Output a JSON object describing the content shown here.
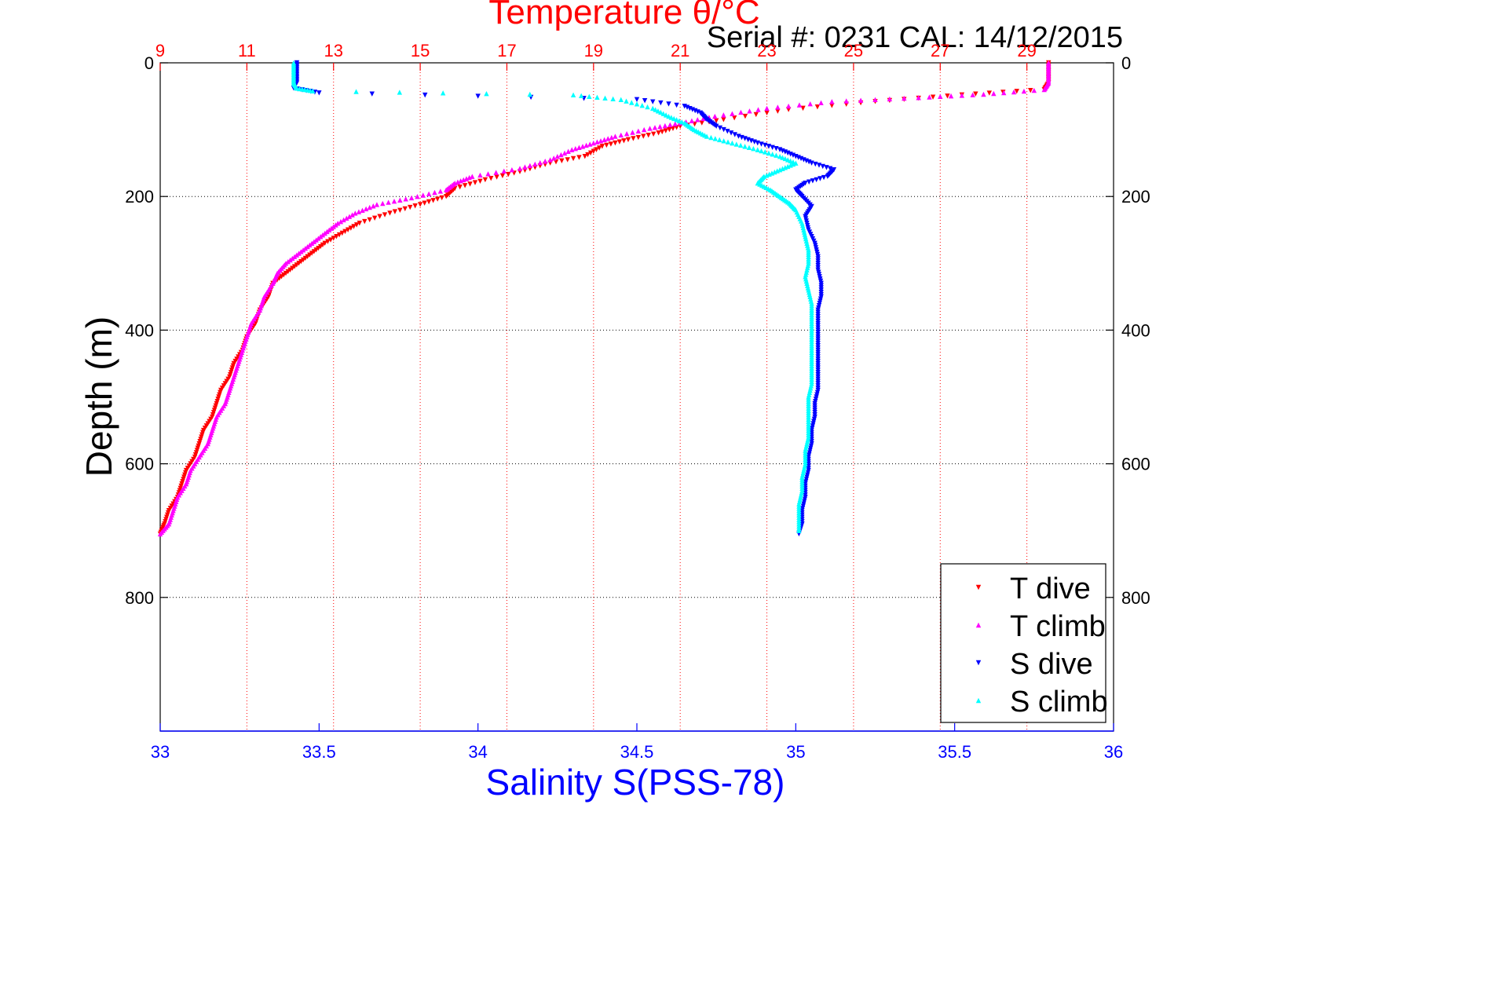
{
  "chart_data": {
    "type": "scatter",
    "title": "Temperature θ/°C",
    "subtitle": "Serial #: 0231  CAL: 14/12/2015",
    "ylabel": "Depth (m)",
    "xlabel": "Salinity S(PSS-78)",
    "x_top": {
      "label": "Temperature θ/°C",
      "lim": [
        9,
        31
      ],
      "ticks": [
        "9",
        "11",
        "13",
        "15",
        "17",
        "19",
        "21",
        "23",
        "25",
        "27",
        "29"
      ],
      "tick_values": [
        9,
        11,
        13,
        15,
        17,
        19,
        21,
        23,
        25,
        27,
        29
      ],
      "color": "#ff0000"
    },
    "x_bottom": {
      "label": "Salinity S(PSS-78)",
      "lim": [
        33,
        36
      ],
      "ticks": [
        "33",
        "33.5",
        "34",
        "34.5",
        "35",
        "35.5",
        "36"
      ],
      "tick_values": [
        33,
        33.5,
        34,
        34.5,
        35,
        35.5,
        36
      ],
      "color": "#0000ff"
    },
    "y": {
      "label": "Depth (m)",
      "lim": [
        0,
        1000
      ],
      "reversed": true,
      "ticks": [
        "0",
        "200",
        "400",
        "600",
        "800"
      ],
      "tick_values": [
        0,
        200,
        400,
        600,
        800
      ]
    },
    "grid": true,
    "legend_position": "bottom-right",
    "series": [
      {
        "name": "T dive",
        "axis": "temperature",
        "color": "#ff0000",
        "marker": "triangle-down",
        "points": [
          [
            29.5,
            0
          ],
          [
            29.5,
            15
          ],
          [
            29.5,
            30
          ],
          [
            29.4,
            40
          ],
          [
            27.5,
            48
          ],
          [
            25.5,
            58
          ],
          [
            23.5,
            70
          ],
          [
            22.0,
            85
          ],
          [
            21.0,
            95
          ],
          [
            20.5,
            105
          ],
          [
            19.8,
            115
          ],
          [
            19.2,
            125
          ],
          [
            18.8,
            140
          ],
          [
            18.0,
            150
          ],
          [
            17.3,
            163
          ],
          [
            16.5,
            175
          ],
          [
            15.8,
            188
          ],
          [
            15.6,
            200
          ],
          [
            15.0,
            212
          ],
          [
            14.3,
            225
          ],
          [
            13.6,
            240
          ],
          [
            13.2,
            255
          ],
          [
            12.8,
            270
          ],
          [
            12.5,
            285
          ],
          [
            12.2,
            300
          ],
          [
            11.9,
            315
          ],
          [
            11.6,
            330
          ],
          [
            11.5,
            350
          ],
          [
            11.3,
            370
          ],
          [
            11.2,
            390
          ],
          [
            11.0,
            410
          ],
          [
            10.9,
            430
          ],
          [
            10.7,
            450
          ],
          [
            10.6,
            470
          ],
          [
            10.4,
            490
          ],
          [
            10.3,
            510
          ],
          [
            10.2,
            530
          ],
          [
            10.0,
            550
          ],
          [
            9.9,
            570
          ],
          [
            9.8,
            590
          ],
          [
            9.6,
            610
          ],
          [
            9.5,
            630
          ],
          [
            9.4,
            650
          ],
          [
            9.2,
            670
          ],
          [
            9.1,
            690
          ],
          [
            9.0,
            705
          ]
        ]
      },
      {
        "name": "T climb",
        "axis": "temperature",
        "color": "#ff00ff",
        "marker": "triangle-up",
        "points": [
          [
            29.5,
            0
          ],
          [
            29.5,
            15
          ],
          [
            29.5,
            30
          ],
          [
            29.4,
            40
          ],
          [
            28.0,
            47
          ],
          [
            26.5,
            52
          ],
          [
            24.5,
            58
          ],
          [
            23.0,
            68
          ],
          [
            21.8,
            80
          ],
          [
            21.0,
            90
          ],
          [
            20.3,
            98
          ],
          [
            19.5,
            110
          ],
          [
            19.0,
            120
          ],
          [
            18.5,
            130
          ],
          [
            18.0,
            145
          ],
          [
            17.3,
            158
          ],
          [
            16.2,
            170
          ],
          [
            15.8,
            180
          ],
          [
            15.6,
            190
          ],
          [
            14.8,
            202
          ],
          [
            14.0,
            212
          ],
          [
            13.5,
            225
          ],
          [
            13.1,
            240
          ],
          [
            12.8,
            255
          ],
          [
            12.5,
            270
          ],
          [
            12.2,
            285
          ],
          [
            11.9,
            300
          ],
          [
            11.7,
            315
          ],
          [
            11.6,
            330
          ],
          [
            11.4,
            350
          ],
          [
            11.3,
            370
          ],
          [
            11.1,
            390
          ],
          [
            11.0,
            410
          ],
          [
            10.9,
            430
          ],
          [
            10.8,
            450
          ],
          [
            10.7,
            470
          ],
          [
            10.6,
            490
          ],
          [
            10.5,
            510
          ],
          [
            10.3,
            530
          ],
          [
            10.2,
            550
          ],
          [
            10.1,
            570
          ],
          [
            9.9,
            590
          ],
          [
            9.7,
            610
          ],
          [
            9.6,
            630
          ],
          [
            9.4,
            650
          ],
          [
            9.3,
            670
          ],
          [
            9.2,
            690
          ],
          [
            9.0,
            705
          ]
        ]
      },
      {
        "name": "S dive",
        "axis": "salinity",
        "color": "#0000ff",
        "marker": "triangle-down",
        "points": [
          [
            33.43,
            0
          ],
          [
            33.43,
            15
          ],
          [
            33.43,
            30
          ],
          [
            33.42,
            38
          ],
          [
            33.5,
            45
          ],
          [
            34.5,
            55
          ],
          [
            34.65,
            65
          ],
          [
            34.7,
            75
          ],
          [
            34.72,
            85
          ],
          [
            34.75,
            95
          ],
          [
            34.82,
            110
          ],
          [
            34.88,
            120
          ],
          [
            34.95,
            130
          ],
          [
            35.0,
            140
          ],
          [
            35.05,
            150
          ],
          [
            35.12,
            160
          ],
          [
            35.1,
            170
          ],
          [
            35.03,
            180
          ],
          [
            35.0,
            190
          ],
          [
            35.02,
            200
          ],
          [
            35.05,
            215
          ],
          [
            35.03,
            230
          ],
          [
            35.04,
            250
          ],
          [
            35.06,
            270
          ],
          [
            35.07,
            290
          ],
          [
            35.07,
            310
          ],
          [
            35.08,
            330
          ],
          [
            35.08,
            350
          ],
          [
            35.07,
            370
          ],
          [
            35.07,
            390
          ],
          [
            35.07,
            410
          ],
          [
            35.07,
            430
          ],
          [
            35.07,
            450
          ],
          [
            35.07,
            470
          ],
          [
            35.07,
            490
          ],
          [
            35.06,
            510
          ],
          [
            35.06,
            530
          ],
          [
            35.05,
            550
          ],
          [
            35.05,
            570
          ],
          [
            35.04,
            590
          ],
          [
            35.04,
            610
          ],
          [
            35.03,
            630
          ],
          [
            35.03,
            650
          ],
          [
            35.02,
            670
          ],
          [
            35.02,
            690
          ],
          [
            35.01,
            705
          ]
        ]
      },
      {
        "name": "S climb",
        "axis": "salinity",
        "color": "#00ffff",
        "marker": "triangle-up",
        "points": [
          [
            33.42,
            0
          ],
          [
            33.42,
            15
          ],
          [
            33.42,
            30
          ],
          [
            33.43,
            38
          ],
          [
            33.48,
            42
          ],
          [
            34.3,
            48
          ],
          [
            34.45,
            55
          ],
          [
            34.55,
            68
          ],
          [
            34.6,
            80
          ],
          [
            34.65,
            90
          ],
          [
            34.68,
            100
          ],
          [
            34.72,
            110
          ],
          [
            34.8,
            120
          ],
          [
            34.88,
            130
          ],
          [
            34.95,
            140
          ],
          [
            35.0,
            150
          ],
          [
            34.95,
            160
          ],
          [
            34.9,
            170
          ],
          [
            34.88,
            180
          ],
          [
            34.92,
            190
          ],
          [
            34.95,
            200
          ],
          [
            34.98,
            210
          ],
          [
            35.0,
            220
          ],
          [
            35.02,
            240
          ],
          [
            35.03,
            260
          ],
          [
            35.04,
            280
          ],
          [
            35.04,
            300
          ],
          [
            35.03,
            320
          ],
          [
            35.04,
            340
          ],
          [
            35.05,
            360
          ],
          [
            35.05,
            380
          ],
          [
            35.05,
            400
          ],
          [
            35.05,
            420
          ],
          [
            35.05,
            440
          ],
          [
            35.05,
            460
          ],
          [
            35.05,
            480
          ],
          [
            35.04,
            500
          ],
          [
            35.04,
            520
          ],
          [
            35.04,
            540
          ],
          [
            35.04,
            560
          ],
          [
            35.03,
            580
          ],
          [
            35.03,
            600
          ],
          [
            35.02,
            620
          ],
          [
            35.02,
            640
          ],
          [
            35.01,
            660
          ],
          [
            35.01,
            680
          ],
          [
            35.01,
            700
          ]
        ]
      }
    ]
  }
}
